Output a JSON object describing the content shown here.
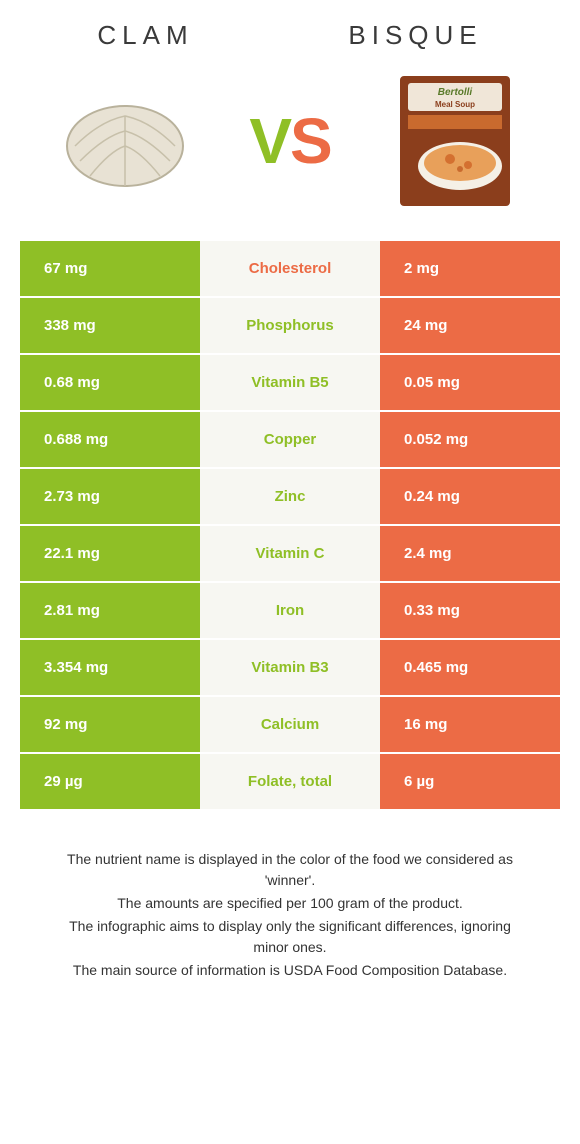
{
  "colors": {
    "left": "#8fbf26",
    "right": "#ec6b45",
    "mid_bg": "#f7f7f2"
  },
  "header": {
    "left_title": "CLAM",
    "right_title": "BISQUE",
    "vs_v": "V",
    "vs_s": "S"
  },
  "rows": [
    {
      "left": "67 mg",
      "label": "Cholesterol",
      "right": "2 mg",
      "winner": "right"
    },
    {
      "left": "338 mg",
      "label": "Phosphorus",
      "right": "24 mg",
      "winner": "left"
    },
    {
      "left": "0.68 mg",
      "label": "Vitamin B5",
      "right": "0.05 mg",
      "winner": "left"
    },
    {
      "left": "0.688 mg",
      "label": "Copper",
      "right": "0.052 mg",
      "winner": "left"
    },
    {
      "left": "2.73 mg",
      "label": "Zinc",
      "right": "0.24 mg",
      "winner": "left"
    },
    {
      "left": "22.1 mg",
      "label": "Vitamin C",
      "right": "2.4 mg",
      "winner": "left"
    },
    {
      "left": "2.81 mg",
      "label": "Iron",
      "right": "0.33 mg",
      "winner": "left"
    },
    {
      "left": "3.354 mg",
      "label": "Vitamin B3",
      "right": "0.465 mg",
      "winner": "left"
    },
    {
      "left": "92 mg",
      "label": "Calcium",
      "right": "16 mg",
      "winner": "left"
    },
    {
      "left": "29 µg",
      "label": "Folate, total",
      "right": "6 µg",
      "winner": "left"
    }
  ],
  "footnotes": [
    "The nutrient name is displayed in the color of the food we considered as 'winner'.",
    "The amounts are specified per 100 gram of the product.",
    "The infographic aims to display only the significant differences, ignoring minor ones.",
    "The main source of information is USDA Food Composition Database."
  ]
}
